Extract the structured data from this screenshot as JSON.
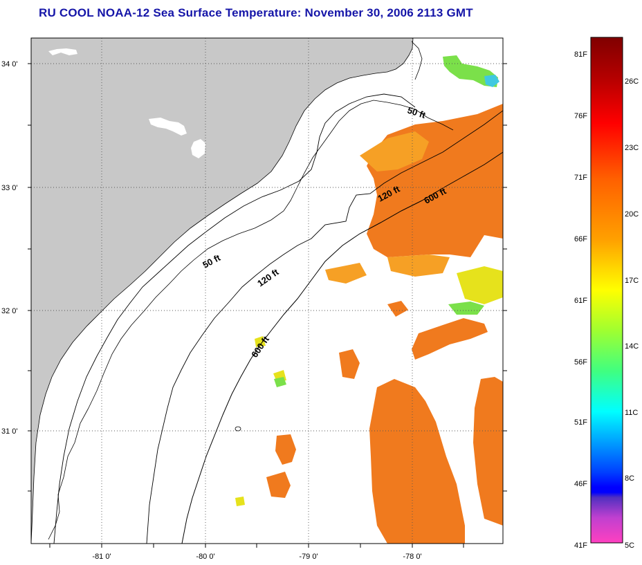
{
  "title": "RU COOL  NOAA-12  Sea Surface Temperature:  November 30, 2006 2113 GMT",
  "map": {
    "latitude_labels": [
      "34 0'",
      "33 0'",
      "32 0'",
      "31 0'"
    ],
    "longitude_labels": [
      "-81 0'",
      "-80 0'",
      "-79 0'",
      "-78 0'"
    ],
    "contour_labels": {
      "fifty_north": "50 ft",
      "onetwenty_north": "120 ft",
      "sixhundred_north": "600 ft",
      "fifty_south": "50 ft",
      "onetwenty_south": "120 ft",
      "sixhundred_south": "600 ft"
    },
    "colors": {
      "land": "#c8c8c8",
      "no_data": "#ffffff",
      "gridline": "#555555",
      "warm_orange": "#f07a1e",
      "light_orange": "#f6a025",
      "yellow": "#e6e21c",
      "green": "#7be04a",
      "cyan": "#40e0d0"
    }
  },
  "colorbar": {
    "fahrenheit_labels": [
      "81F",
      "76F",
      "71F",
      "66F",
      "61F",
      "56F",
      "51F",
      "46F",
      "41F"
    ],
    "celsius_labels": [
      "26C",
      "23C",
      "20C",
      "17C",
      "14C",
      "11C",
      "8C",
      "5C"
    ]
  }
}
